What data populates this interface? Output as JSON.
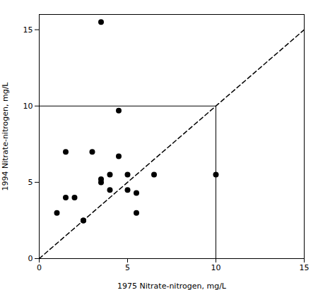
{
  "chart_data": {
    "type": "scatter",
    "x": [
      1.0,
      1.5,
      1.5,
      2.0,
      2.5,
      2.5,
      3.0,
      3.5,
      3.5,
      3.5,
      4.0,
      4.0,
      4.5,
      4.5,
      5.0,
      5.0,
      5.5,
      5.5,
      6.5,
      10.0
    ],
    "values": [
      3.0,
      7.0,
      4.0,
      4.0,
      2.5,
      2.5,
      7.0,
      5.2,
      5.0,
      15.5,
      4.5,
      5.5,
      6.7,
      9.7,
      4.5,
      5.5,
      4.3,
      3.0,
      5.5,
      5.5
    ],
    "color": "#000000",
    "marker": "circle",
    "xlabel": "1975 Nitrate-nitrogen, mg/L",
    "ylabel": "1994 Nitrate-nitrogen, mg/L",
    "xlim": [
      0,
      15
    ],
    "ylim": [
      0,
      16
    ],
    "xticks": [
      0,
      5,
      10,
      15
    ],
    "yticks": [
      0,
      5,
      10,
      15
    ],
    "grid": false,
    "lines": [
      {
        "x": [
          0,
          15
        ],
        "y": [
          0,
          15
        ],
        "color": "#000000",
        "line_style": "dashed"
      },
      {
        "x": [
          0,
          10,
          10
        ],
        "y": [
          10,
          10,
          0
        ],
        "color": "#000000",
        "line_style": "solid"
      }
    ]
  }
}
